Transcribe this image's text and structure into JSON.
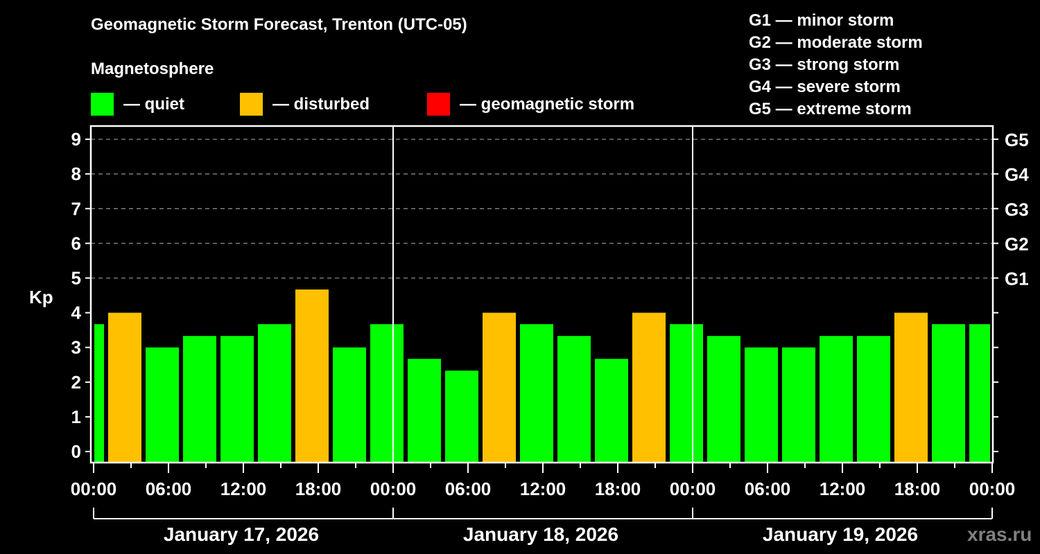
{
  "header": {
    "title": "Geomagnetic Storm Forecast, Trenton (UTC-05)",
    "subtitle": "Magnetosphere"
  },
  "legend": [
    {
      "label": "— quiet",
      "color": "#00ff00"
    },
    {
      "label": "— disturbed",
      "color": "#ffc000"
    },
    {
      "label": "— geomagnetic storm",
      "color": "#ff0000"
    }
  ],
  "g_scale": [
    {
      "text": "G1 — minor storm"
    },
    {
      "text": "G2 — moderate storm"
    },
    {
      "text": "G3 — strong storm"
    },
    {
      "text": "G4 — severe storm"
    },
    {
      "text": "G5 — extreme storm"
    }
  ],
  "watermark": "xras.ru",
  "chart_data": {
    "type": "bar",
    "title": "Geomagnetic Storm Forecast, Trenton (UTC-05)",
    "xlabel": "",
    "ylabel": "Kp",
    "ylim": [
      0,
      9
    ],
    "yticks": [
      0,
      1,
      2,
      3,
      4,
      5,
      6,
      7,
      8,
      9
    ],
    "right_axis_ticks": [
      {
        "kp": 5,
        "label": "G1"
      },
      {
        "kp": 6,
        "label": "G2"
      },
      {
        "kp": 7,
        "label": "G3"
      },
      {
        "kp": 8,
        "label": "G4"
      },
      {
        "kp": 9,
        "label": "G5"
      }
    ],
    "grid": "dashed horizontal at Kp 5–9",
    "xtick_labels": [
      "00:00",
      "06:00",
      "12:00",
      "18:00",
      "00:00",
      "06:00",
      "12:00",
      "18:00",
      "00:00",
      "06:00",
      "12:00",
      "18:00",
      "00:00"
    ],
    "day_labels": [
      "January 17, 2026",
      "January 18, 2026",
      "January 19, 2026"
    ],
    "interval_hours": 3,
    "categories": [
      "Jan17 00:00",
      "Jan17 03:00",
      "Jan17 06:00",
      "Jan17 09:00",
      "Jan17 12:00",
      "Jan17 15:00",
      "Jan17 18:00",
      "Jan17 21:00",
      "Jan18 00:00",
      "Jan18 03:00",
      "Jan18 06:00",
      "Jan18 09:00",
      "Jan18 12:00",
      "Jan18 15:00",
      "Jan18 18:00",
      "Jan18 21:00",
      "Jan19 00:00",
      "Jan19 03:00",
      "Jan19 06:00",
      "Jan19 09:00",
      "Jan19 12:00",
      "Jan19 15:00",
      "Jan19 18:00",
      "Jan19 21:00",
      "Jan20 00:00"
    ],
    "values": [
      3.67,
      4.0,
      3.0,
      3.33,
      3.33,
      3.67,
      4.67,
      3.0,
      3.67,
      2.67,
      2.33,
      4.0,
      3.67,
      3.33,
      2.67,
      4.0,
      3.67,
      3.33,
      3.0,
      3.0,
      3.33,
      3.33,
      4.0,
      3.67,
      3.67
    ],
    "status": [
      "quiet",
      "disturbed",
      "quiet",
      "quiet",
      "quiet",
      "quiet",
      "disturbed",
      "quiet",
      "quiet",
      "quiet",
      "quiet",
      "disturbed",
      "quiet",
      "quiet",
      "quiet",
      "disturbed",
      "quiet",
      "quiet",
      "quiet",
      "quiet",
      "quiet",
      "quiet",
      "disturbed",
      "quiet",
      "quiet"
    ],
    "colors": {
      "quiet": "#00ff00",
      "disturbed": "#ffc000",
      "storm": "#ff0000"
    }
  }
}
